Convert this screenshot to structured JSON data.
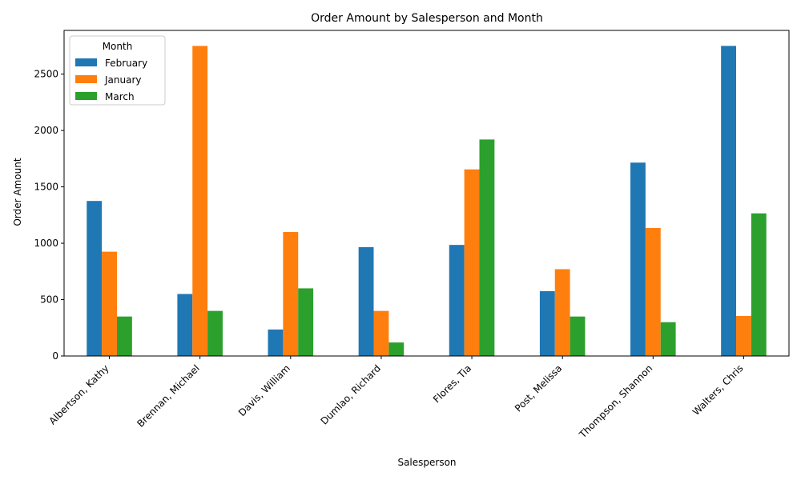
{
  "chart_data": {
    "type": "bar",
    "title": "Order Amount by Salesperson and Month",
    "xlabel": "Salesperson",
    "ylabel": "Order Amount",
    "categories": [
      "Albertson, Kathy",
      "Brennan, Michael",
      "Davis, William",
      "Dumlao, Richard",
      "Flores, Tia",
      "Post, Melissa",
      "Thompson, Shannon",
      "Walters, Chris"
    ],
    "series": [
      {
        "name": "February",
        "color": "#1f77b4",
        "values": [
          1375,
          550,
          235,
          965,
          985,
          575,
          1715,
          2750
        ]
      },
      {
        "name": "January",
        "color": "#ff7f0e",
        "values": [
          925,
          2750,
          1100,
          400,
          1655,
          770,
          1135,
          355
        ]
      },
      {
        "name": "March",
        "color": "#2ca02c",
        "values": [
          350,
          400,
          600,
          120,
          1920,
          350,
          300,
          1265
        ]
      }
    ],
    "ylim": [
      0,
      2887.5
    ],
    "yticks": [
      0,
      500,
      1000,
      1500,
      2000,
      2500
    ],
    "legend": {
      "title": "Month",
      "placement": "top-left"
    },
    "grid": false
  }
}
